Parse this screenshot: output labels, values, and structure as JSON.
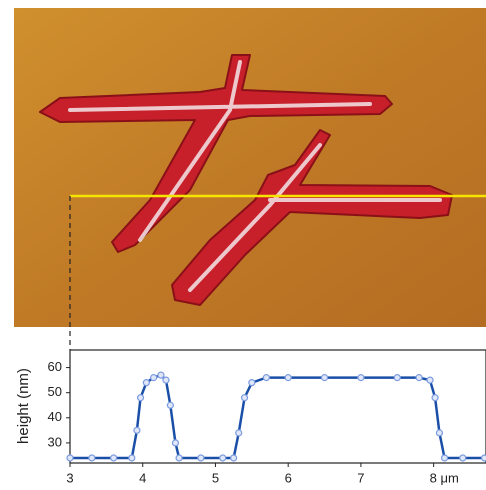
{
  "chart_data": {
    "type": "line",
    "y_label": "height (nm)",
    "x": [
      3,
      3.3,
      3.6,
      3.85,
      3.92,
      3.97,
      4.05,
      4.15,
      4.25,
      4.32,
      4.38,
      4.45,
      4.5,
      4.8,
      5.1,
      5.25,
      5.32,
      5.4,
      5.5,
      5.7,
      6,
      6.5,
      7,
      7.5,
      7.8,
      7.95,
      8.02,
      8.08,
      8.15,
      8.4,
      8.7
    ],
    "series": [
      {
        "color": "#7b9be0",
        "line_color": "#1a4fa8",
        "values": [
          24,
          24,
          24,
          24,
          35,
          48,
          54,
          56,
          57,
          55,
          45,
          30,
          24,
          24,
          24,
          24,
          34,
          48,
          54,
          56,
          56,
          56,
          56,
          56,
          56,
          55,
          48,
          34,
          24,
          24,
          24
        ]
      }
    ],
    "xlim": [
      3,
      8.72
    ],
    "xticks": [
      3,
      4,
      5,
      6,
      7,
      {
        "value": 8,
        "label": "8 μm"
      }
    ],
    "ylim": [
      22,
      67
    ],
    "yticks": [
      30,
      40,
      50,
      60
    ]
  }
}
